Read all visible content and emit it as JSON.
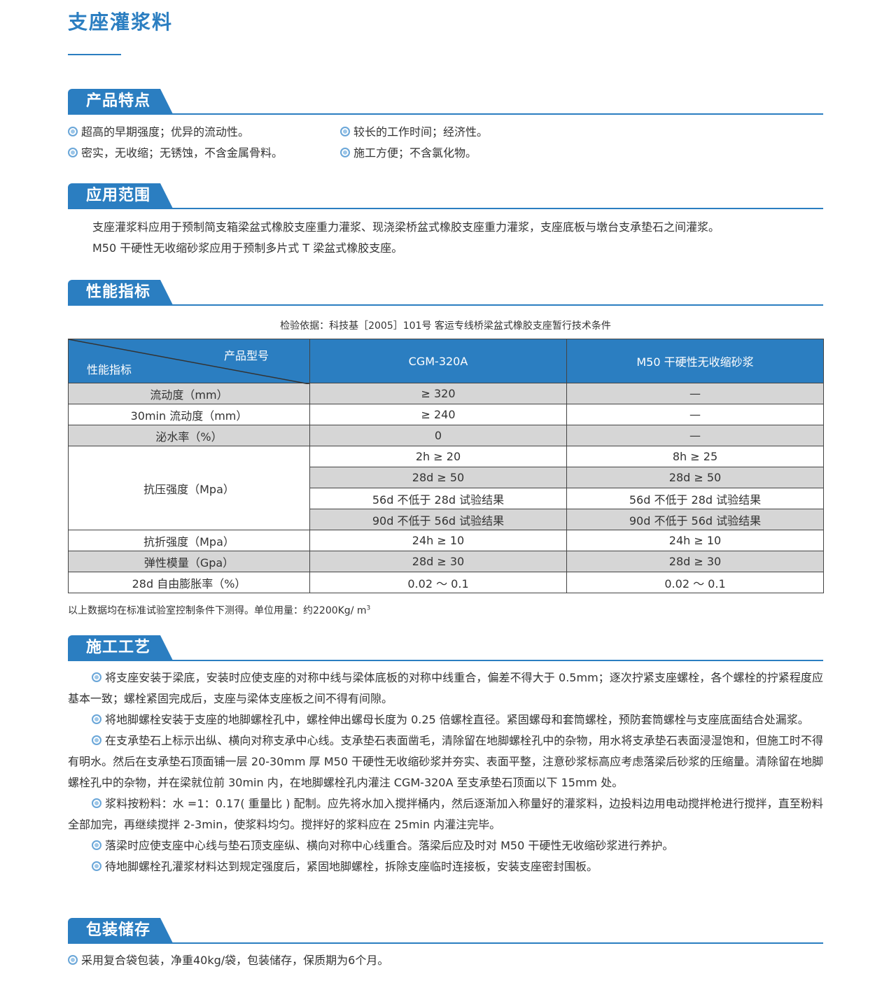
{
  "header": {
    "title": "支座灌浆料"
  },
  "features": {
    "title": "产品特点",
    "items": [
      "超高的早期强度；优异的流动性。",
      "较长的工作时间；经济性。",
      "密实，无收缩；无锈蚀，不含金属骨料。",
      "施工方便；不含氯化物。"
    ]
  },
  "application": {
    "title": "应用范围",
    "paragraphs": [
      "支座灌浆料应用于预制简支箱梁盆式橡胶支座重力灌浆、现浇梁桥盆式橡胶支座重力灌浆，支座底板与墩台支承垫石之间灌浆。",
      "M50 干硬性无收缩砂浆应用于预制多片式 T 梁盆式橡胶支座。"
    ]
  },
  "performance": {
    "title": "性能指标",
    "note": "检验依据：科技基［2005］101号 客运专线桥梁盆式橡胶支座暂行技术条件",
    "table": {
      "corner_top": "产品型号",
      "corner_bottom": "性能指标",
      "columns": [
        "CGM-320A",
        "M50 干硬性无收缩砂浆"
      ],
      "rows": [
        {
          "label": "流动度（mm）",
          "values": [
            [
              "≥ 320",
              "—"
            ]
          ]
        },
        {
          "label": "30min 流动度（mm）",
          "values": [
            [
              "≥ 240",
              "—"
            ]
          ]
        },
        {
          "label": "泌水率（%）",
          "values": [
            [
              "0",
              "—"
            ]
          ]
        },
        {
          "label": "抗压强度（Mpa）",
          "values": [
            [
              "2h ≥ 20",
              "8h ≥ 25"
            ],
            [
              "28d ≥ 50",
              "28d ≥ 50"
            ],
            [
              "56d 不低于 28d 试验结果",
              "56d 不低于 28d 试验结果"
            ],
            [
              "90d 不低于 56d 试验结果",
              "90d 不低于 56d 试验结果"
            ]
          ]
        },
        {
          "label": "抗折强度（Mpa）",
          "values": [
            [
              "24h ≥ 10",
              "24h ≥ 10"
            ]
          ]
        },
        {
          "label": "弹性模量（Gpa）",
          "values": [
            [
              "28d ≥ 30",
              "28d ≥ 30"
            ]
          ]
        },
        {
          "label": "28d 自由膨胀率（%）",
          "values": [
            [
              "0.02 ～ 0.1",
              "0.02 ～ 0.1"
            ]
          ]
        }
      ]
    },
    "footnote": {
      "text": "以上数据均在标准试验室控制条件下测得。单位用量：约2200Kg/ m",
      "sup": "3"
    }
  },
  "process": {
    "title": "施工工艺",
    "paragraphs": [
      "将支座安装于梁底，安装时应使支座的对称中线与梁体底板的对称中线重合，偏差不得大于 0.5mm；逐次拧紧支座螺栓，各个螺栓的拧紧程度应基本一致；螺栓紧固完成后，支座与梁体支座板之间不得有间隙。",
      "将地脚螺栓安装于支座的地脚螺栓孔中，螺栓伸出螺母长度为 0.25 倍螺栓直径。紧固螺母和套筒螺栓，预防套筒螺栓与支座底面结合处漏浆。",
      "在支承垫石上标示出纵、横向对称支承中心线。支承垫石表面凿毛，清除留在地脚螺栓孔中的杂物，用水将支承垫石表面浸湿饱和，但施工时不得有明水。然后在支承垫石顶面铺一层 20-30mm 厚 M50 干硬性无收缩砂浆并夯实、表面平整，注意砂浆标高应考虑落梁后砂浆的压缩量。清除留在地脚螺栓孔中的杂物，并在梁就位前 30min 内，在地脚螺栓孔内灌注 CGM-320A 至支承垫石顶面以下 15mm 处。",
      "浆料按粉料：水 =1：0.17( 重量比 ) 配制。应先将水加入搅拌桶内，然后逐渐加入称量好的灌浆料，边投料边用电动搅拌枪进行搅拌，直至粉料全部加完，再继续搅拌 2-3min，使浆料均匀。搅拌好的浆料应在 25min 内灌注完毕。",
      "落梁时应使支座中心线与垫石顶支座纵、横向对称中心线重合。落梁后应及时对 M50 干硬性无收缩砂浆进行养护。",
      "待地脚螺栓孔灌浆材料达到规定强度后，紧固地脚螺栓，拆除支座临时连接板，安装支座密封围板。"
    ]
  },
  "storage": {
    "title": "包装储存",
    "items": [
      "采用复合袋包装，净重40kg/袋，包装储存，保质期为6个月。"
    ]
  }
}
